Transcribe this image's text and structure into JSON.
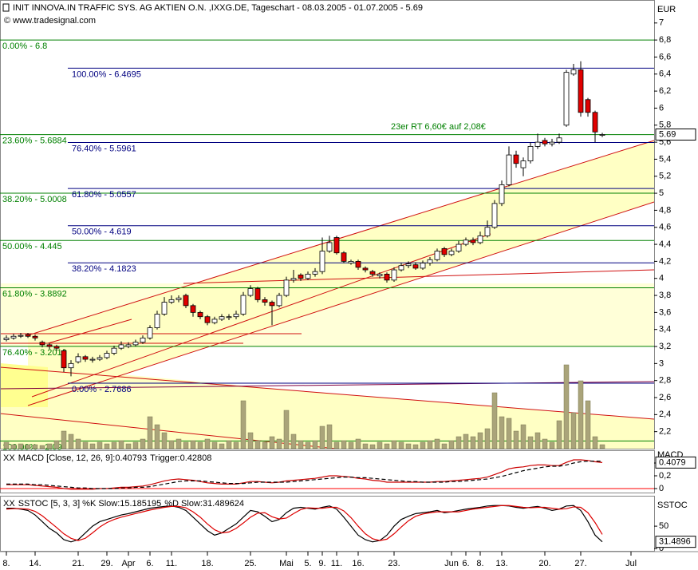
{
  "chart_data": [
    {
      "type": "candlestick",
      "title": "INIT INNOVA.IN TRAFFIC SYS. AG AKTIEN O.N. ,IXXG.DE, Tageschart - 08.03.2005 - 01.07.2005 - 5.69",
      "subtitle": "© www.tradesignal.com",
      "y_label": "EUR",
      "categories": [
        "8.",
        null,
        null,
        null,
        "14.",
        null,
        null,
        null,
        null,
        null,
        "21.",
        null,
        null,
        null,
        "29.",
        null,
        null,
        "Apr",
        null,
        null,
        "6.",
        null,
        null,
        "11.",
        null,
        null,
        null,
        null,
        "18.",
        null,
        null,
        null,
        null,
        null,
        "25.",
        null,
        null,
        null,
        null,
        "Mai",
        null,
        null,
        "5.",
        null,
        "9.",
        null,
        "11.",
        null,
        null,
        "16.",
        null,
        null,
        null,
        null,
        "23.",
        null,
        null,
        null,
        null,
        null,
        null,
        null,
        "Jun",
        null,
        "6.",
        null,
        "8.",
        null,
        null,
        "13.",
        null,
        null,
        null,
        null,
        null,
        "20.",
        null,
        null,
        null,
        null,
        "27.",
        null,
        null,
        null,
        null,
        null,
        null,
        "Jul"
      ],
      "open": [
        3.28,
        3.3,
        3.32,
        3.34,
        3.32,
        3.25,
        3.22,
        3.2,
        3.15,
        2.95,
        3.02,
        3.08,
        3.04,
        3.05,
        3.07,
        3.12,
        3.18,
        3.2,
        3.22,
        3.25,
        3.3,
        3.42,
        3.58,
        3.72,
        3.75,
        3.8,
        3.68,
        3.6,
        3.55,
        3.48,
        3.52,
        3.54,
        3.55,
        3.58,
        3.8,
        3.88,
        3.75,
        3.72,
        3.68,
        3.8,
        3.98,
        4.04,
        4.0,
        4.05,
        4.08,
        4.32,
        4.48,
        4.3,
        4.18,
        4.2,
        4.12,
        4.08,
        4.03,
        4.05,
        3.98,
        4.1,
        4.15,
        4.16,
        4.12,
        4.18,
        4.22,
        4.35,
        4.28,
        4.32,
        4.4,
        4.45,
        4.42,
        4.5,
        4.6,
        4.88,
        5.1,
        5.45,
        5.3,
        5.38,
        5.55,
        5.62,
        5.58,
        5.6,
        5.8,
        6.4,
        6.45,
        6.1,
        5.95,
        5.68,
        null,
        null,
        null,
        null
      ],
      "high": [
        3.33,
        3.35,
        3.36,
        3.36,
        3.34,
        3.27,
        3.24,
        3.22,
        3.17,
        3.04,
        3.12,
        3.1,
        3.08,
        3.1,
        3.15,
        3.21,
        3.26,
        3.25,
        3.28,
        3.33,
        3.45,
        3.62,
        3.78,
        3.8,
        3.8,
        3.82,
        3.7,
        3.62,
        3.57,
        3.55,
        3.58,
        3.58,
        3.62,
        3.84,
        3.92,
        3.9,
        3.78,
        3.74,
        3.83,
        4.02,
        4.1,
        4.06,
        4.08,
        4.12,
        4.48,
        4.5,
        4.5,
        4.32,
        4.22,
        4.22,
        4.14,
        4.1,
        4.07,
        4.07,
        4.13,
        4.18,
        4.2,
        4.19,
        4.21,
        4.25,
        4.35,
        4.37,
        4.35,
        4.44,
        4.48,
        4.48,
        4.55,
        4.68,
        4.92,
        5.15,
        5.55,
        5.5,
        5.42,
        5.6,
        5.7,
        5.65,
        5.64,
        5.7,
        6.45,
        6.52,
        6.55,
        6.12,
        5.97,
        5.71,
        null,
        null,
        null,
        null
      ],
      "low": [
        3.26,
        3.28,
        3.3,
        3.3,
        3.27,
        3.19,
        3.17,
        3.15,
        2.9,
        2.85,
        3.0,
        3.02,
        3.01,
        3.03,
        3.05,
        3.1,
        3.16,
        3.18,
        3.2,
        3.23,
        3.28,
        3.4,
        3.56,
        3.7,
        3.72,
        3.65,
        3.55,
        3.52,
        3.45,
        3.46,
        3.5,
        3.51,
        3.52,
        3.56,
        3.78,
        3.72,
        3.68,
        3.45,
        3.66,
        3.78,
        3.95,
        3.97,
        3.98,
        4.02,
        4.05,
        4.3,
        4.28,
        4.18,
        4.16,
        4.1,
        4.07,
        4.02,
        4.0,
        3.95,
        3.96,
        4.08,
        4.12,
        4.1,
        4.1,
        4.15,
        4.2,
        4.25,
        4.26,
        4.3,
        4.38,
        4.39,
        4.4,
        4.48,
        4.58,
        4.85,
        5.08,
        5.3,
        5.2,
        5.35,
        5.52,
        5.55,
        5.55,
        5.58,
        5.78,
        6.38,
        5.9,
        5.9,
        5.6,
        5.66,
        null,
        null,
        null,
        null
      ],
      "close": [
        3.3,
        3.32,
        3.33,
        3.32,
        3.3,
        3.22,
        3.2,
        3.18,
        2.95,
        3.0,
        3.08,
        3.05,
        3.05,
        3.07,
        3.12,
        3.18,
        3.22,
        3.22,
        3.25,
        3.3,
        3.42,
        3.58,
        3.72,
        3.75,
        3.77,
        3.68,
        3.6,
        3.55,
        3.48,
        3.52,
        3.55,
        3.55,
        3.58,
        3.8,
        3.88,
        3.75,
        3.72,
        3.68,
        3.8,
        3.98,
        4.0,
        4.0,
        4.05,
        4.08,
        4.32,
        4.42,
        4.3,
        4.2,
        4.2,
        4.13,
        4.1,
        4.05,
        4.05,
        3.98,
        4.1,
        4.15,
        4.17,
        4.12,
        4.18,
        4.22,
        4.32,
        4.28,
        4.32,
        4.4,
        4.45,
        4.42,
        4.5,
        4.6,
        4.88,
        5.1,
        5.45,
        5.35,
        5.38,
        5.55,
        5.6,
        5.58,
        5.6,
        5.65,
        6.42,
        6.45,
        5.95,
        5.95,
        5.72,
        5.69,
        null,
        null,
        null,
        null
      ],
      "up_color": "#ffffff",
      "down_color": "#e00000",
      "volume": {
        "color": "#aaa47a",
        "values": [
          8,
          5,
          6,
          5,
          5,
          4,
          6,
          10,
          22,
          18,
          12,
          8,
          6,
          8,
          6,
          8,
          10,
          6,
          8,
          12,
          40,
          30,
          20,
          10,
          12,
          8,
          10,
          8,
          12,
          8,
          6,
          10,
          8,
          60,
          20,
          10,
          8,
          15,
          12,
          48,
          18,
          10,
          8,
          10,
          28,
          30,
          8,
          10,
          8,
          12,
          6,
          5,
          8,
          6,
          10,
          8,
          6,
          5,
          8,
          10,
          12,
          6,
          10,
          15,
          18,
          15,
          20,
          25,
          70,
          40,
          38,
          22,
          30,
          15,
          20,
          12,
          8,
          35,
          105,
          45,
          85,
          60,
          15,
          5,
          null,
          null,
          null,
          null
        ]
      },
      "ylim": [
        2.0,
        7.27
      ],
      "yticks": [
        {
          "value": 2.2,
          "label": "2,2"
        },
        {
          "value": 2.4,
          "label": "2,4"
        },
        {
          "value": 2.6,
          "label": "2,6"
        },
        {
          "value": 2.8,
          "label": "2,8"
        },
        3,
        {
          "value": 3.2,
          "label": "3,2"
        },
        {
          "value": 3.4,
          "label": "3,4"
        },
        {
          "value": 3.6,
          "label": "3,6"
        },
        {
          "value": 3.8,
          "label": "3,8"
        },
        4,
        {
          "value": 4.2,
          "label": "4,2"
        },
        {
          "value": 4.4,
          "label": "4,4"
        },
        {
          "value": 4.6,
          "label": "4,6"
        },
        {
          "value": 4.8,
          "label": "4,8"
        },
        5,
        {
          "value": 5.2,
          "label": "5,2"
        },
        {
          "value": 5.4,
          "label": "5,4"
        },
        {
          "value": 5.6,
          "label": "5,6"
        },
        {
          "value": 5.8,
          "label": "5,8"
        },
        6,
        {
          "value": 6.2,
          "label": "6,2"
        },
        {
          "value": 6.4,
          "label": "6,4"
        },
        {
          "value": 6.6,
          "label": "6,6"
        },
        {
          "value": 6.8,
          "label": "6,8"
        },
        7
      ],
      "retracements": [
        {
          "color": "#008000",
          "levels": [
            {
              "label": "0.00% - 6.8",
              "value": 6.8
            },
            {
              "label": "23.60% - 5.6884",
              "value": 5.6884
            },
            {
              "label": "38.20% - 5.0008",
              "value": 5.0008
            },
            {
              "label": "50.00% - 4.445",
              "value": 4.445
            },
            {
              "label": "61.80% - 3.8892",
              "value": 3.8892
            },
            {
              "label": "76.40% - 3.2016",
              "value": 3.2016
            },
            {
              "label": "100.00% - 2.09",
              "value": 2.09
            }
          ]
        },
        {
          "color": "#000080",
          "levels": [
            {
              "label": "100.00% - 6.4695",
              "value": 6.4695
            },
            {
              "label": "76.40% - 5.5961",
              "value": 5.5961
            },
            {
              "label": "61.80% - 5.0557",
              "value": 5.0557
            },
            {
              "label": "50.00% - 4.619",
              "value": 4.619
            },
            {
              "label": "38.20% - 4.1823",
              "value": 4.1823
            },
            {
              "label": "0.00% - 2.7686",
              "value": 2.7686
            }
          ]
        }
      ],
      "annotation": "23er RT 6,60€ auf 2,08€",
      "last_value_label": "5.69"
    },
    {
      "type": "line",
      "title": "XX",
      "y_label": "MACD",
      "series": [
        {
          "name": "MACD [Close, 12, 26, 9]:0.40793",
          "color": "#cc0000",
          "style": "solid",
          "values": [
            0.06,
            0.06,
            0.06,
            0.06,
            0.05,
            0.04,
            0.03,
            0.02,
            0.0,
            -0.01,
            -0.01,
            -0.01,
            -0.01,
            0.0,
            0.0,
            0.01,
            0.02,
            0.02,
            0.03,
            0.04,
            0.06,
            0.09,
            0.12,
            0.14,
            0.15,
            0.14,
            0.13,
            0.11,
            0.09,
            0.08,
            0.07,
            0.07,
            0.07,
            0.09,
            0.11,
            0.11,
            0.1,
            0.09,
            0.1,
            0.12,
            0.13,
            0.14,
            0.15,
            0.16,
            0.18,
            0.2,
            0.2,
            0.19,
            0.18,
            0.16,
            0.15,
            0.13,
            0.12,
            0.1,
            0.1,
            0.1,
            0.1,
            0.1,
            0.1,
            0.1,
            0.11,
            0.11,
            0.12,
            0.13,
            0.14,
            0.15,
            0.16,
            0.18,
            0.22,
            0.26,
            0.31,
            0.33,
            0.34,
            0.36,
            0.37,
            0.37,
            0.36,
            0.36,
            0.41,
            0.45,
            0.45,
            0.44,
            0.42,
            0.40793,
            null,
            null,
            null,
            null
          ]
        },
        {
          "name": "Trigger:0.42808",
          "color": "#000000",
          "style": "dashed",
          "values": [
            0.07,
            0.07,
            0.07,
            0.07,
            0.06,
            0.06,
            0.05,
            0.04,
            0.03,
            0.02,
            0.01,
            0.01,
            0.0,
            0.0,
            0.0,
            0.0,
            0.01,
            0.01,
            0.02,
            0.02,
            0.03,
            0.05,
            0.07,
            0.09,
            0.11,
            0.12,
            0.12,
            0.12,
            0.11,
            0.1,
            0.09,
            0.08,
            0.08,
            0.08,
            0.09,
            0.1,
            0.1,
            0.1,
            0.1,
            0.1,
            0.11,
            0.12,
            0.13,
            0.14,
            0.15,
            0.16,
            0.17,
            0.18,
            0.18,
            0.17,
            0.17,
            0.16,
            0.15,
            0.14,
            0.13,
            0.12,
            0.11,
            0.11,
            0.1,
            0.1,
            0.1,
            0.1,
            0.11,
            0.11,
            0.12,
            0.13,
            0.14,
            0.15,
            0.17,
            0.19,
            0.22,
            0.25,
            0.28,
            0.3,
            0.32,
            0.34,
            0.35,
            0.35,
            0.37,
            0.4,
            0.42,
            0.43,
            0.43,
            0.42808,
            null,
            null,
            null,
            null
          ]
        }
      ],
      "ylim": [
        -0.0625,
        0.5875
      ],
      "yticks": [
        0,
        {
          "value": 0.2,
          "label": "0,2"
        },
        {
          "value": 0.4,
          "label": "0,4"
        }
      ],
      "zero_line_color": "#ff0000",
      "last_value_label": "0.4079"
    },
    {
      "type": "line",
      "title": "XX",
      "y_label": "SSTOC",
      "series": [
        {
          "name": "SSTOC [5, 3, 3] %K Slow:15.185195",
          "color": "#000000",
          "style": "solid",
          "values": [
            90,
            90,
            88,
            85,
            75,
            60,
            45,
            35,
            20,
            15,
            20,
            35,
            50,
            60,
            65,
            70,
            75,
            78,
            82,
            86,
            90,
            92,
            94,
            95,
            92,
            85,
            70,
            55,
            40,
            30,
            35,
            45,
            55,
            70,
            85,
            82,
            72,
            60,
            65,
            80,
            90,
            92,
            90,
            88,
            92,
            95,
            88,
            70,
            50,
            30,
            20,
            15,
            18,
            30,
            50,
            65,
            72,
            78,
            80,
            82,
            85,
            80,
            82,
            85,
            88,
            90,
            92,
            95,
            96,
            96,
            95,
            92,
            90,
            92,
            94,
            90,
            85,
            88,
            95,
            96,
            85,
            60,
            30,
            15.185195,
            null,
            null,
            null,
            null
          ]
        },
        {
          "name": "%D Slow:31.489624",
          "color": "#dd0000",
          "style": "solid",
          "values": [
            88,
            89,
            89,
            88,
            83,
            73,
            60,
            47,
            33,
            23,
            18,
            23,
            35,
            48,
            58,
            65,
            70,
            74,
            78,
            82,
            86,
            89,
            92,
            94,
            94,
            91,
            82,
            70,
            55,
            42,
            35,
            37,
            45,
            57,
            70,
            79,
            80,
            71,
            66,
            68,
            78,
            87,
            91,
            90,
            90,
            92,
            92,
            84,
            69,
            50,
            33,
            22,
            18,
            21,
            33,
            48,
            62,
            72,
            77,
            80,
            82,
            82,
            82,
            82,
            85,
            88,
            90,
            92,
            94,
            96,
            96,
            94,
            92,
            91,
            92,
            92,
            90,
            88,
            89,
            93,
            92,
            80,
            58,
            31.489624,
            null,
            null,
            null,
            null
          ]
        }
      ],
      "ylim": [
        -5,
        116
      ],
      "yticks": [
        0,
        50
      ],
      "last_value_label": "31.4896"
    }
  ]
}
